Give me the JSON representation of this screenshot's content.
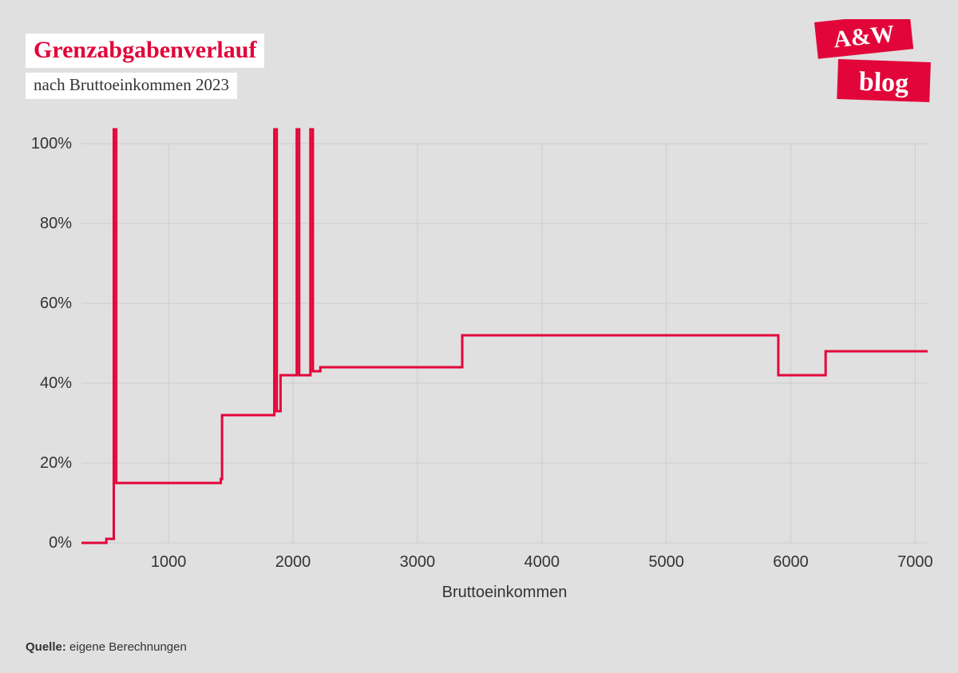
{
  "title": "Grenzabgabenverlauf",
  "subtitle": "nach Bruttoeinkommen 2023",
  "source_label": "Quelle:",
  "source_text": "eigene Berechnungen",
  "logo": {
    "top": "A&W",
    "bottom": "blog"
  },
  "chart": {
    "type": "line-step",
    "xlabel": "Bruttoeinkommen",
    "xlim": [
      300,
      7100
    ],
    "ylim": [
      0,
      100
    ],
    "xticks": [
      1000,
      2000,
      3000,
      4000,
      5000,
      6000,
      7000
    ],
    "yticks": [
      0,
      20,
      40,
      60,
      80,
      100
    ],
    "ytick_suffix": "%",
    "line_color": "#e2053a",
    "line_width": 3,
    "background_color": "#e0e0e0",
    "grid_color": "#cccccc",
    "axis_label_fontsize": 20,
    "tick_fontsize": 20,
    "spikes_go_above_top": true,
    "points": [
      [
        300,
        0
      ],
      [
        500,
        0
      ],
      [
        500,
        1
      ],
      [
        560,
        1
      ],
      [
        560,
        100
      ],
      [
        580,
        100
      ],
      [
        580,
        15
      ],
      [
        1420,
        15
      ],
      [
        1420,
        16
      ],
      [
        1430,
        16
      ],
      [
        1430,
        32
      ],
      [
        1850,
        32
      ],
      [
        1850,
        100
      ],
      [
        1870,
        100
      ],
      [
        1870,
        33
      ],
      [
        1900,
        33
      ],
      [
        1900,
        42
      ],
      [
        2030,
        42
      ],
      [
        2030,
        100
      ],
      [
        2050,
        100
      ],
      [
        2050,
        42
      ],
      [
        2140,
        42
      ],
      [
        2140,
        100
      ],
      [
        2160,
        100
      ],
      [
        2160,
        43
      ],
      [
        2220,
        43
      ],
      [
        2220,
        44
      ],
      [
        3360,
        44
      ],
      [
        3360,
        52
      ],
      [
        5900,
        52
      ],
      [
        5900,
        42
      ],
      [
        6280,
        42
      ],
      [
        6280,
        48
      ],
      [
        7100,
        48
      ]
    ]
  }
}
